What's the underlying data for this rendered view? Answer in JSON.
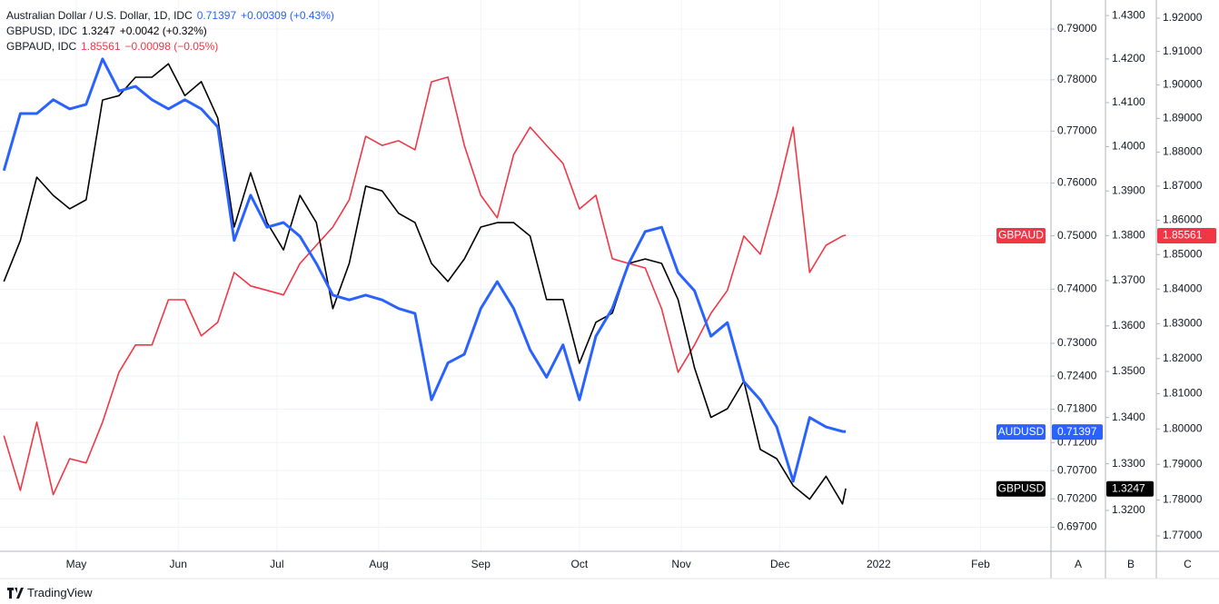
{
  "chart_data": {
    "type": "line",
    "log": true,
    "grid": true,
    "x": [
      99,
      104,
      109,
      114,
      119,
      124,
      129,
      134,
      139,
      144,
      149,
      154,
      159,
      164,
      169,
      174,
      179,
      184,
      189,
      194,
      199,
      204,
      209,
      214,
      219,
      224,
      229,
      234,
      239,
      244,
      249,
      254,
      259,
      264,
      269,
      274,
      279,
      284,
      289,
      294,
      299,
      304,
      309,
      314,
      319,
      324,
      329,
      334,
      339,
      344,
      349,
      354,
      355
    ],
    "xlim": [
      97.8,
      417.4
    ],
    "xticks": [
      {
        "value": 121,
        "label": "May"
      },
      {
        "value": 152,
        "label": "Jun"
      },
      {
        "value": 182,
        "label": "Jul"
      },
      {
        "value": 213,
        "label": "Aug"
      },
      {
        "value": 244,
        "label": "Sep"
      },
      {
        "value": 274,
        "label": "Oct"
      },
      {
        "value": 305,
        "label": "Nov"
      },
      {
        "value": 335,
        "label": "Dec"
      },
      {
        "value": 365,
        "label": "2022"
      },
      {
        "value": 396,
        "label": "Feb"
      }
    ],
    "ylim": [
      0.6928,
      0.7958
    ],
    "yticks": [
      {
        "value": 0.79,
        "label": "0.79000"
      },
      {
        "value": 0.78,
        "label": "0.78000"
      },
      {
        "value": 0.77,
        "label": "0.77000"
      },
      {
        "value": 0.76,
        "label": "0.76000"
      },
      {
        "value": 0.75,
        "label": "0.75000"
      },
      {
        "value": 0.74,
        "label": "0.74000"
      },
      {
        "value": 0.73,
        "label": "0.73000"
      },
      {
        "value": 0.724,
        "label": "0.72400"
      },
      {
        "value": 0.718,
        "label": "0.71800"
      },
      {
        "value": 0.712,
        "label": "0.71200"
      },
      {
        "value": 0.707,
        "label": "0.70700"
      },
      {
        "value": 0.702,
        "label": "0.70200"
      },
      {
        "value": 0.697,
        "label": "0.69700"
      }
    ],
    "y2lim": [
      1.3113,
      1.4336
    ],
    "y2ticks": [
      {
        "value": 1.43,
        "label": "1.4300"
      },
      {
        "value": 1.42,
        "label": "1.4200"
      },
      {
        "value": 1.41,
        "label": "1.4100"
      },
      {
        "value": 1.4,
        "label": "1.4000"
      },
      {
        "value": 1.39,
        "label": "1.3900"
      },
      {
        "value": 1.38,
        "label": "1.3800"
      },
      {
        "value": 1.37,
        "label": "1.3700"
      },
      {
        "value": 1.36,
        "label": "1.3600"
      },
      {
        "value": 1.35,
        "label": "1.3500"
      },
      {
        "value": 1.34,
        "label": "1.3400"
      },
      {
        "value": 1.33,
        "label": "1.3300"
      },
      {
        "value": 1.32,
        "label": "1.3200"
      }
    ],
    "y3lim": [
      1.7657,
      1.9255
    ],
    "y3ticks": [
      {
        "value": 1.92,
        "label": "1.92000"
      },
      {
        "value": 1.91,
        "label": "1.91000"
      },
      {
        "value": 1.9,
        "label": "1.90000"
      },
      {
        "value": 1.89,
        "label": "1.89000"
      },
      {
        "value": 1.88,
        "label": "1.88000"
      },
      {
        "value": 1.87,
        "label": "1.87000"
      },
      {
        "value": 1.86,
        "label": "1.86000"
      },
      {
        "value": 1.85,
        "label": "1.85000"
      },
      {
        "value": 1.84,
        "label": "1.84000"
      },
      {
        "value": 1.83,
        "label": "1.83000"
      },
      {
        "value": 1.82,
        "label": "1.82000"
      },
      {
        "value": 1.81,
        "label": "1.81000"
      },
      {
        "value": 1.8,
        "label": "1.80000"
      },
      {
        "value": 1.79,
        "label": "1.79000"
      },
      {
        "value": 1.78,
        "label": "1.78000"
      },
      {
        "value": 1.77,
        "label": "1.77000"
      }
    ],
    "axis_names": [
      "A",
      "B",
      "C"
    ],
    "series": [
      {
        "name": "Australian Dollar / U.S. Dollar, 1D, IDC",
        "short_name": "AUDUSD",
        "change": "+0.00309 (+0.43%)",
        "color": "#2962ff",
        "axis": "y",
        "values": [
          0.7624,
          0.7734,
          0.7734,
          0.7761,
          0.7743,
          0.7752,
          0.7841,
          0.7778,
          0.7787,
          0.7761,
          0.7743,
          0.7761,
          0.7743,
          0.7708,
          0.7491,
          0.7577,
          0.7516,
          0.7525,
          0.7499,
          0.7448,
          0.7389,
          0.738,
          0.7389,
          0.738,
          0.7364,
          0.7355,
          0.7197,
          0.7264,
          0.728,
          0.7364,
          0.7414,
          0.7364,
          0.7288,
          0.7238,
          0.7297,
          0.7197,
          0.7313,
          0.7364,
          0.7448,
          0.7508,
          0.7516,
          0.7431,
          0.7397,
          0.7313,
          0.7338,
          0.723,
          0.7197,
          0.7148,
          0.7051,
          0.7165,
          0.7148,
          0.714,
          0.71397
        ]
      },
      {
        "name": "GBPUSD, IDC",
        "short_name": "GBPUSD",
        "change": "+0.0042 (+0.32%)",
        "color": "#000000",
        "axis": "y2",
        "values": [
          1.3698,
          1.3789,
          1.3931,
          1.389,
          1.386,
          1.388,
          1.4106,
          1.4116,
          1.4158,
          1.4158,
          1.4189,
          1.4116,
          1.4148,
          1.4065,
          1.3819,
          1.3941,
          1.3829,
          1.3768,
          1.389,
          1.3829,
          1.3638,
          1.3738,
          1.3911,
          1.39,
          1.385,
          1.3829,
          1.3738,
          1.3698,
          1.3748,
          1.3819,
          1.3829,
          1.3829,
          1.3799,
          1.3658,
          1.3658,
          1.3518,
          1.3608,
          1.3628,
          1.3738,
          1.3748,
          1.3738,
          1.3658,
          1.3508,
          1.34,
          1.3419,
          1.3479,
          1.3331,
          1.3311,
          1.3253,
          1.3224,
          1.3273,
          1.3214,
          1.3247
        ]
      },
      {
        "name": "GBPAUD, IDC",
        "short_name": "GBPAUD",
        "change": "−0.00098 (−0.05%)",
        "color": "#f23645",
        "axis": "y3",
        "values": [
          1.7981,
          1.7827,
          1.8019,
          1.7815,
          1.7916,
          1.7904,
          1.8019,
          1.8161,
          1.8239,
          1.8239,
          1.8369,
          1.8369,
          1.8265,
          1.8304,
          1.8448,
          1.8409,
          1.8396,
          1.8383,
          1.8474,
          1.8527,
          1.858,
          1.866,
          1.8847,
          1.882,
          1.8834,
          1.8807,
          1.9009,
          1.9023,
          1.882,
          1.8673,
          1.8607,
          1.8793,
          1.8874,
          1.882,
          1.8767,
          1.8633,
          1.8673,
          1.8488,
          1.8474,
          1.8461,
          1.8343,
          1.8161,
          1.8239,
          1.833,
          1.8396,
          1.8554,
          1.8501,
          1.8673,
          1.8874,
          1.8448,
          1.8527,
          1.8554,
          1.85561
        ]
      }
    ]
  },
  "footer": {
    "brand": "TradingView"
  }
}
